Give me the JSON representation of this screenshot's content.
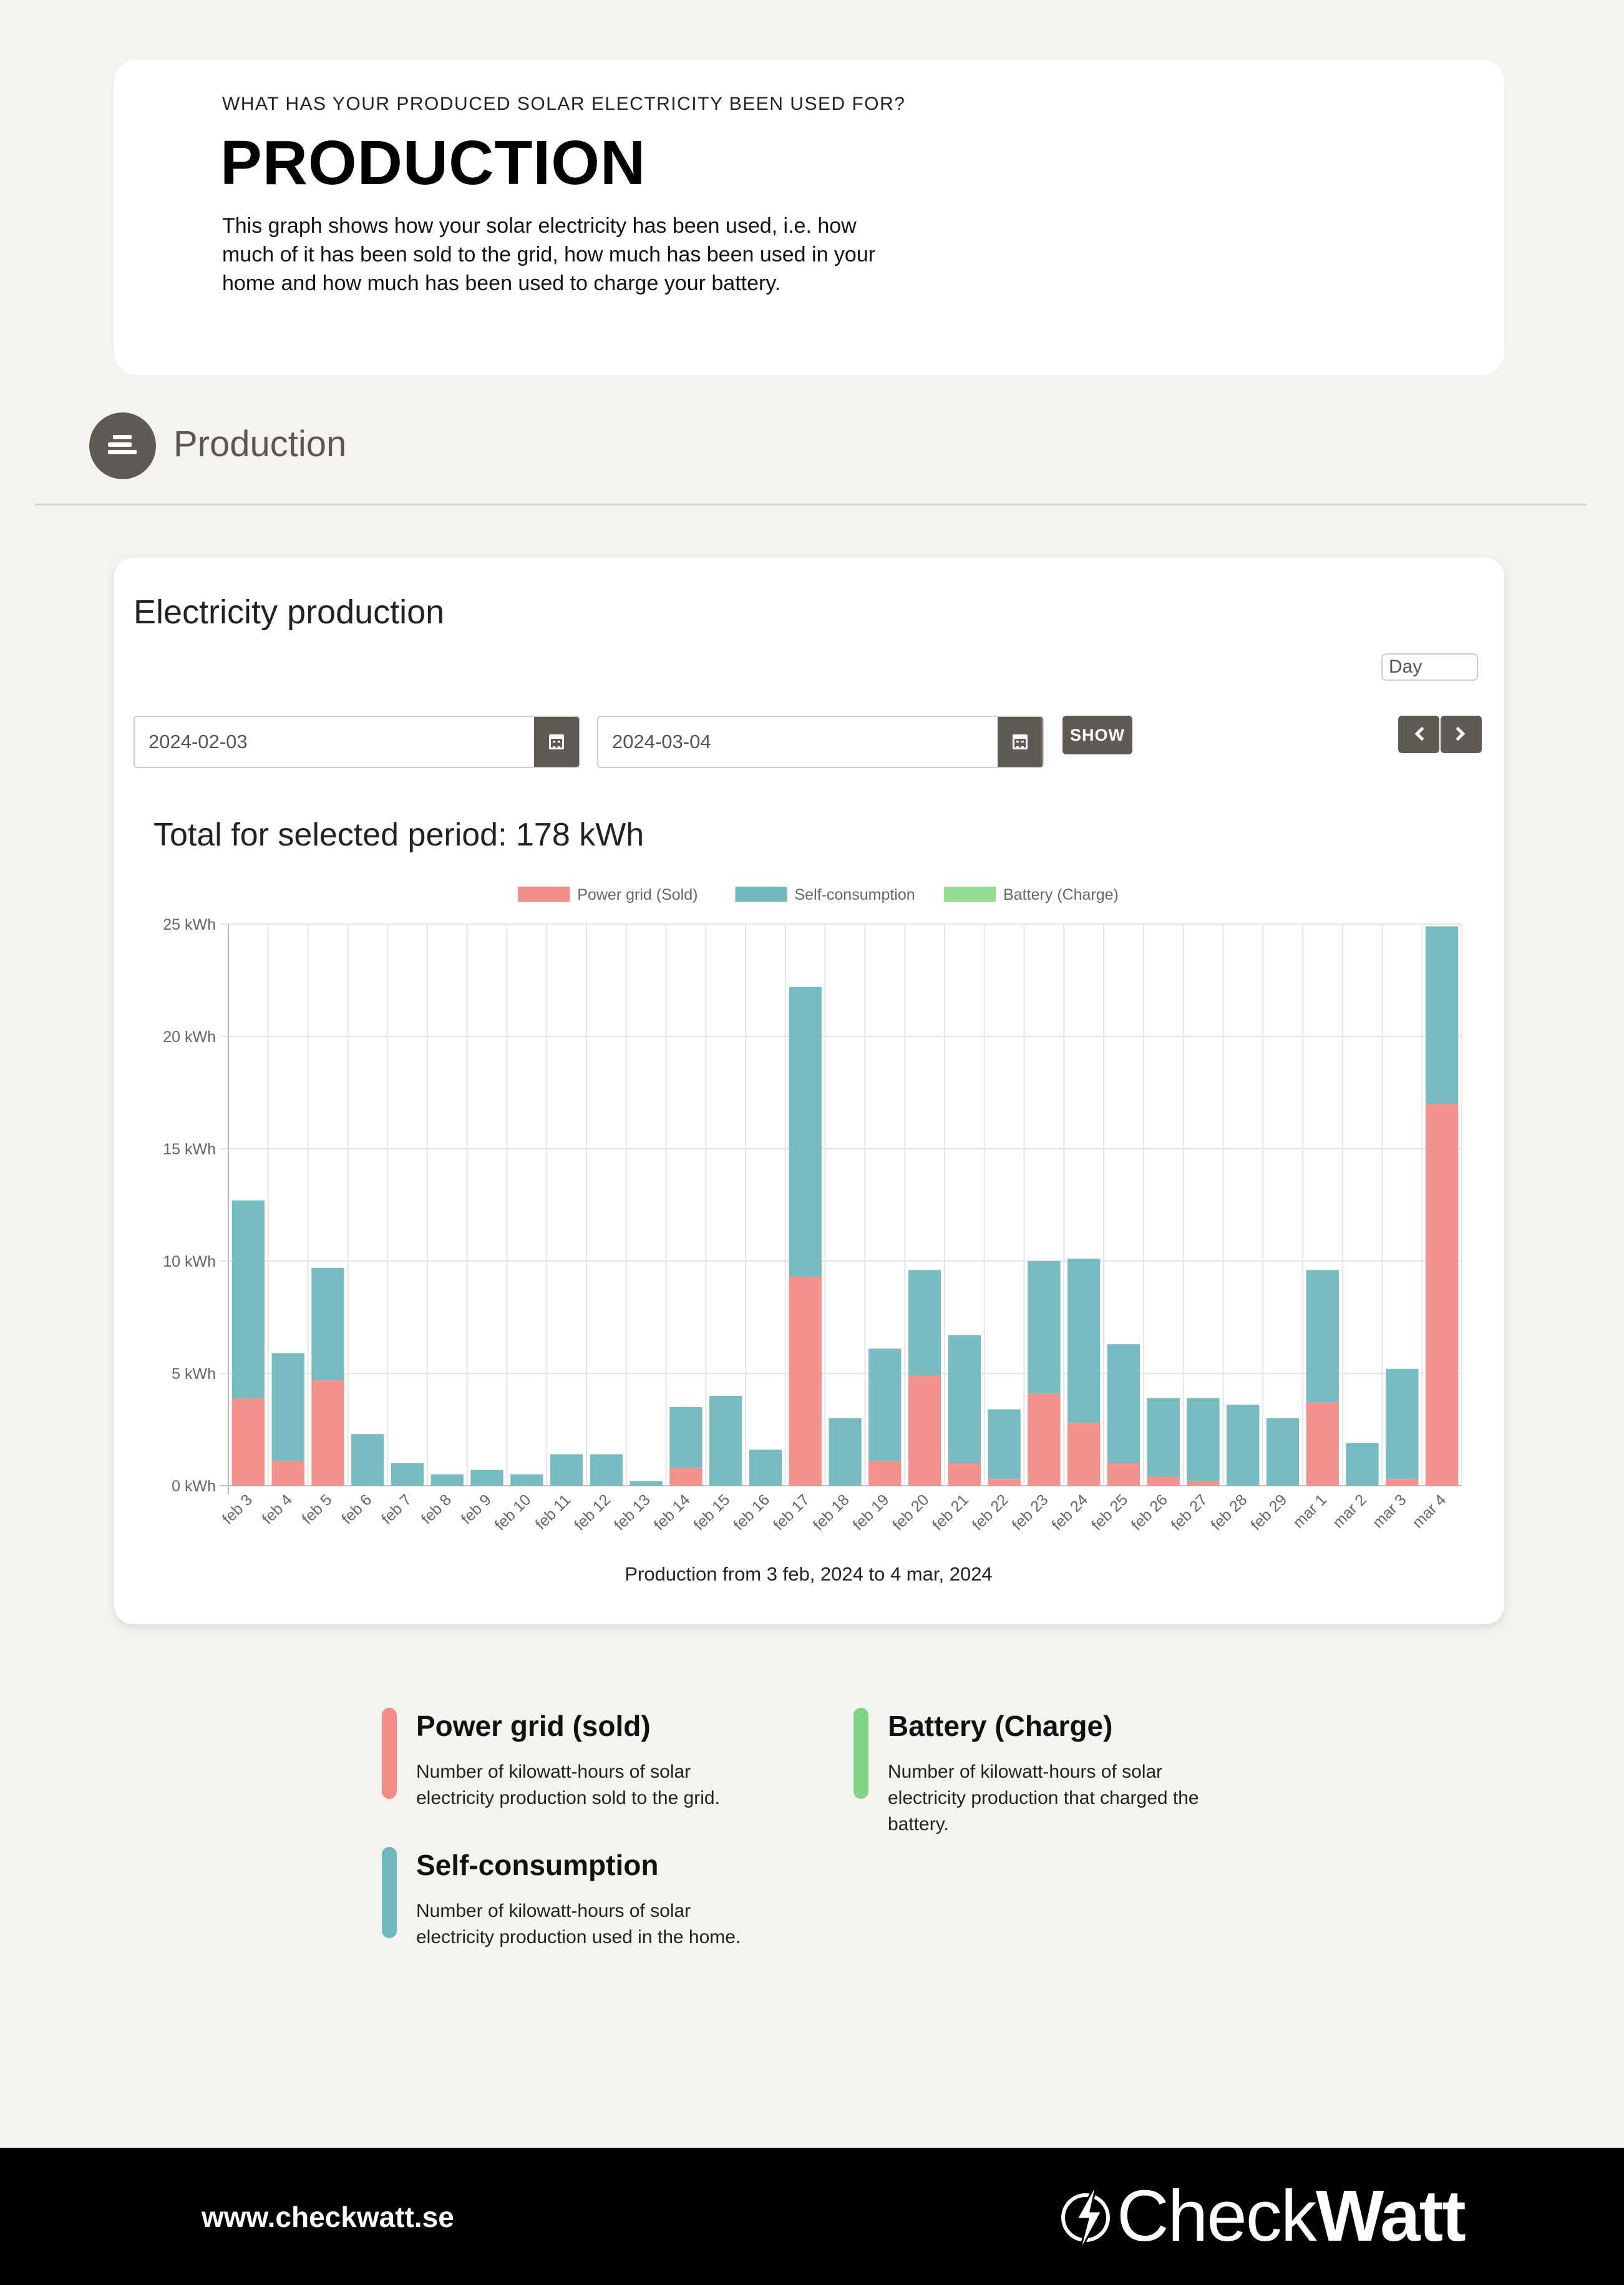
{
  "intro": {
    "eyebrow": "WHAT HAS YOUR PRODUCED SOLAR ELECTRICITY BEEN USED FOR?",
    "title": "PRODUCTION",
    "description": "This graph shows how your solar electricity has been used, i.e. how much of it has been sold to the grid, how much has been used in your home and how much has been used to charge your battery."
  },
  "section": {
    "icon": "stack-icon",
    "title": "Production"
  },
  "controls": {
    "card_title": "Electricity production",
    "period": "Day",
    "start_date": "2024-02-03",
    "end_date": "2024-03-04",
    "show_label": "SHOW",
    "total_line": "Total for selected period: 178 kWh"
  },
  "chart_data": {
    "type": "bar",
    "stacked": true,
    "categories": [
      "feb 3",
      "feb 4",
      "feb 5",
      "feb 6",
      "feb 7",
      "feb 8",
      "feb 9",
      "feb 10",
      "feb 11",
      "feb 12",
      "feb 13",
      "feb 14",
      "feb 15",
      "feb 16",
      "feb 17",
      "feb 18",
      "feb 19",
      "feb 20",
      "feb 21",
      "feb 22",
      "feb 23",
      "feb 24",
      "feb 25",
      "feb 26",
      "feb 27",
      "feb 28",
      "feb 29",
      "mar 1",
      "mar 2",
      "mar 3",
      "mar 4"
    ],
    "series": [
      {
        "name": "Power grid (Sold)",
        "color": "#f28b86",
        "values": [
          3.9,
          1.1,
          4.7,
          0,
          0,
          0,
          0,
          0,
          0,
          0,
          0,
          0.8,
          0,
          0,
          9.3,
          0,
          1.1,
          4.9,
          1.0,
          0.3,
          4.1,
          2.8,
          1.0,
          0.4,
          0.2,
          0,
          0,
          3.7,
          0,
          0.3,
          17.0
        ]
      },
      {
        "name": "Self-consumption",
        "color": "#6fb8bd",
        "values": [
          8.8,
          4.8,
          5.0,
          2.3,
          1.0,
          0.5,
          0.7,
          0.5,
          1.4,
          1.4,
          0.2,
          2.7,
          4.0,
          1.6,
          12.9,
          3.0,
          5.0,
          4.7,
          5.7,
          3.1,
          5.9,
          7.3,
          5.3,
          3.5,
          3.7,
          3.6,
          3.0,
          5.9,
          1.9,
          4.9,
          7.9
        ]
      },
      {
        "name": "Battery (Charge)",
        "color": "#95dc92",
        "values": [
          0,
          0,
          0,
          0,
          0,
          0,
          0,
          0,
          0,
          0,
          0,
          0,
          0,
          0,
          0,
          0,
          0,
          0,
          0,
          0,
          0,
          0,
          0,
          0,
          0,
          0,
          0,
          0,
          0,
          0,
          0
        ]
      }
    ],
    "yticks": [
      "0 kWh",
      "5 kWh",
      "10 kWh",
      "15 kWh",
      "20 kWh",
      "25 kWh"
    ],
    "ylim": [
      0,
      25
    ],
    "ylabel": "",
    "xlabel": "",
    "caption": "Production from 3 feb, 2024 to 4 mar, 2024",
    "legend_position": "top-center",
    "grid": true
  },
  "explanations": [
    {
      "title": "Power grid (sold)",
      "color": "#f28b86",
      "desc": "Number of kilowatt-hours of solar electricity production sold to the grid."
    },
    {
      "title": "Battery (Charge)",
      "color": "#7fd486",
      "desc": "Number of kilowatt-hours of solar electricity production that charged the battery."
    },
    {
      "title": "Self-consumption",
      "color": "#6fb8bd",
      "desc": "Number of kilowatt-hours of solar electricity production used in the home."
    }
  ],
  "footer": {
    "url": "www.checkwatt.se",
    "brand_light": "Check",
    "brand_bold": "Watt"
  }
}
